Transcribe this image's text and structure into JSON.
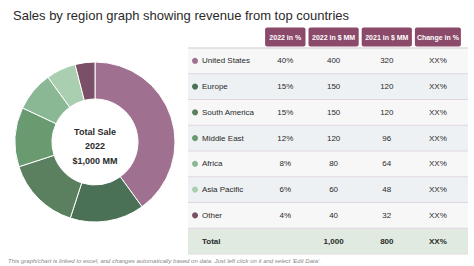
{
  "chart_data": {
    "type": "pie",
    "title": "Sales by region graph showing revenue from top countries",
    "categories": [
      "United States",
      "Europe",
      "South America",
      "Middle East",
      "Africa",
      "Asia Pacific",
      "Other"
    ],
    "values": [
      40,
      15,
      15,
      12,
      8,
      6,
      4
    ],
    "colors": [
      "#a07090",
      "#4a7055",
      "#5a8060",
      "#6a9a70",
      "#8ab895",
      "#aacfb0",
      "#7a5068"
    ],
    "center_text": [
      "Total Sale",
      "2022",
      "$1,000 MM"
    ],
    "table": {
      "headers": [
        null,
        "2022 in %",
        "2022 in $ MM",
        "2021 in $ MM",
        "Change in %"
      ],
      "rows": [
        [
          "United States",
          "40%",
          "400",
          "320",
          "XX%"
        ],
        [
          "Europe",
          "15%",
          "150",
          "120",
          "XX%"
        ],
        [
          "South America",
          "15%",
          "150",
          "120",
          "XX%"
        ],
        [
          "Middle East",
          "12%",
          "120",
          "96",
          "XX%"
        ],
        [
          "Africa",
          "8%",
          "80",
          "64",
          "XX%"
        ],
        [
          "Asia Pacific",
          "6%",
          "60",
          "48",
          "XX%"
        ],
        [
          "Other",
          "4%",
          "40",
          "32",
          "XX%"
        ],
        [
          "Total",
          null,
          "1,000",
          "800",
          "XX%"
        ]
      ]
    },
    "footer": "This graph/chart is linked to excel, and changes automatically based on data. Just left click on it and select 'Edit Data'."
  }
}
